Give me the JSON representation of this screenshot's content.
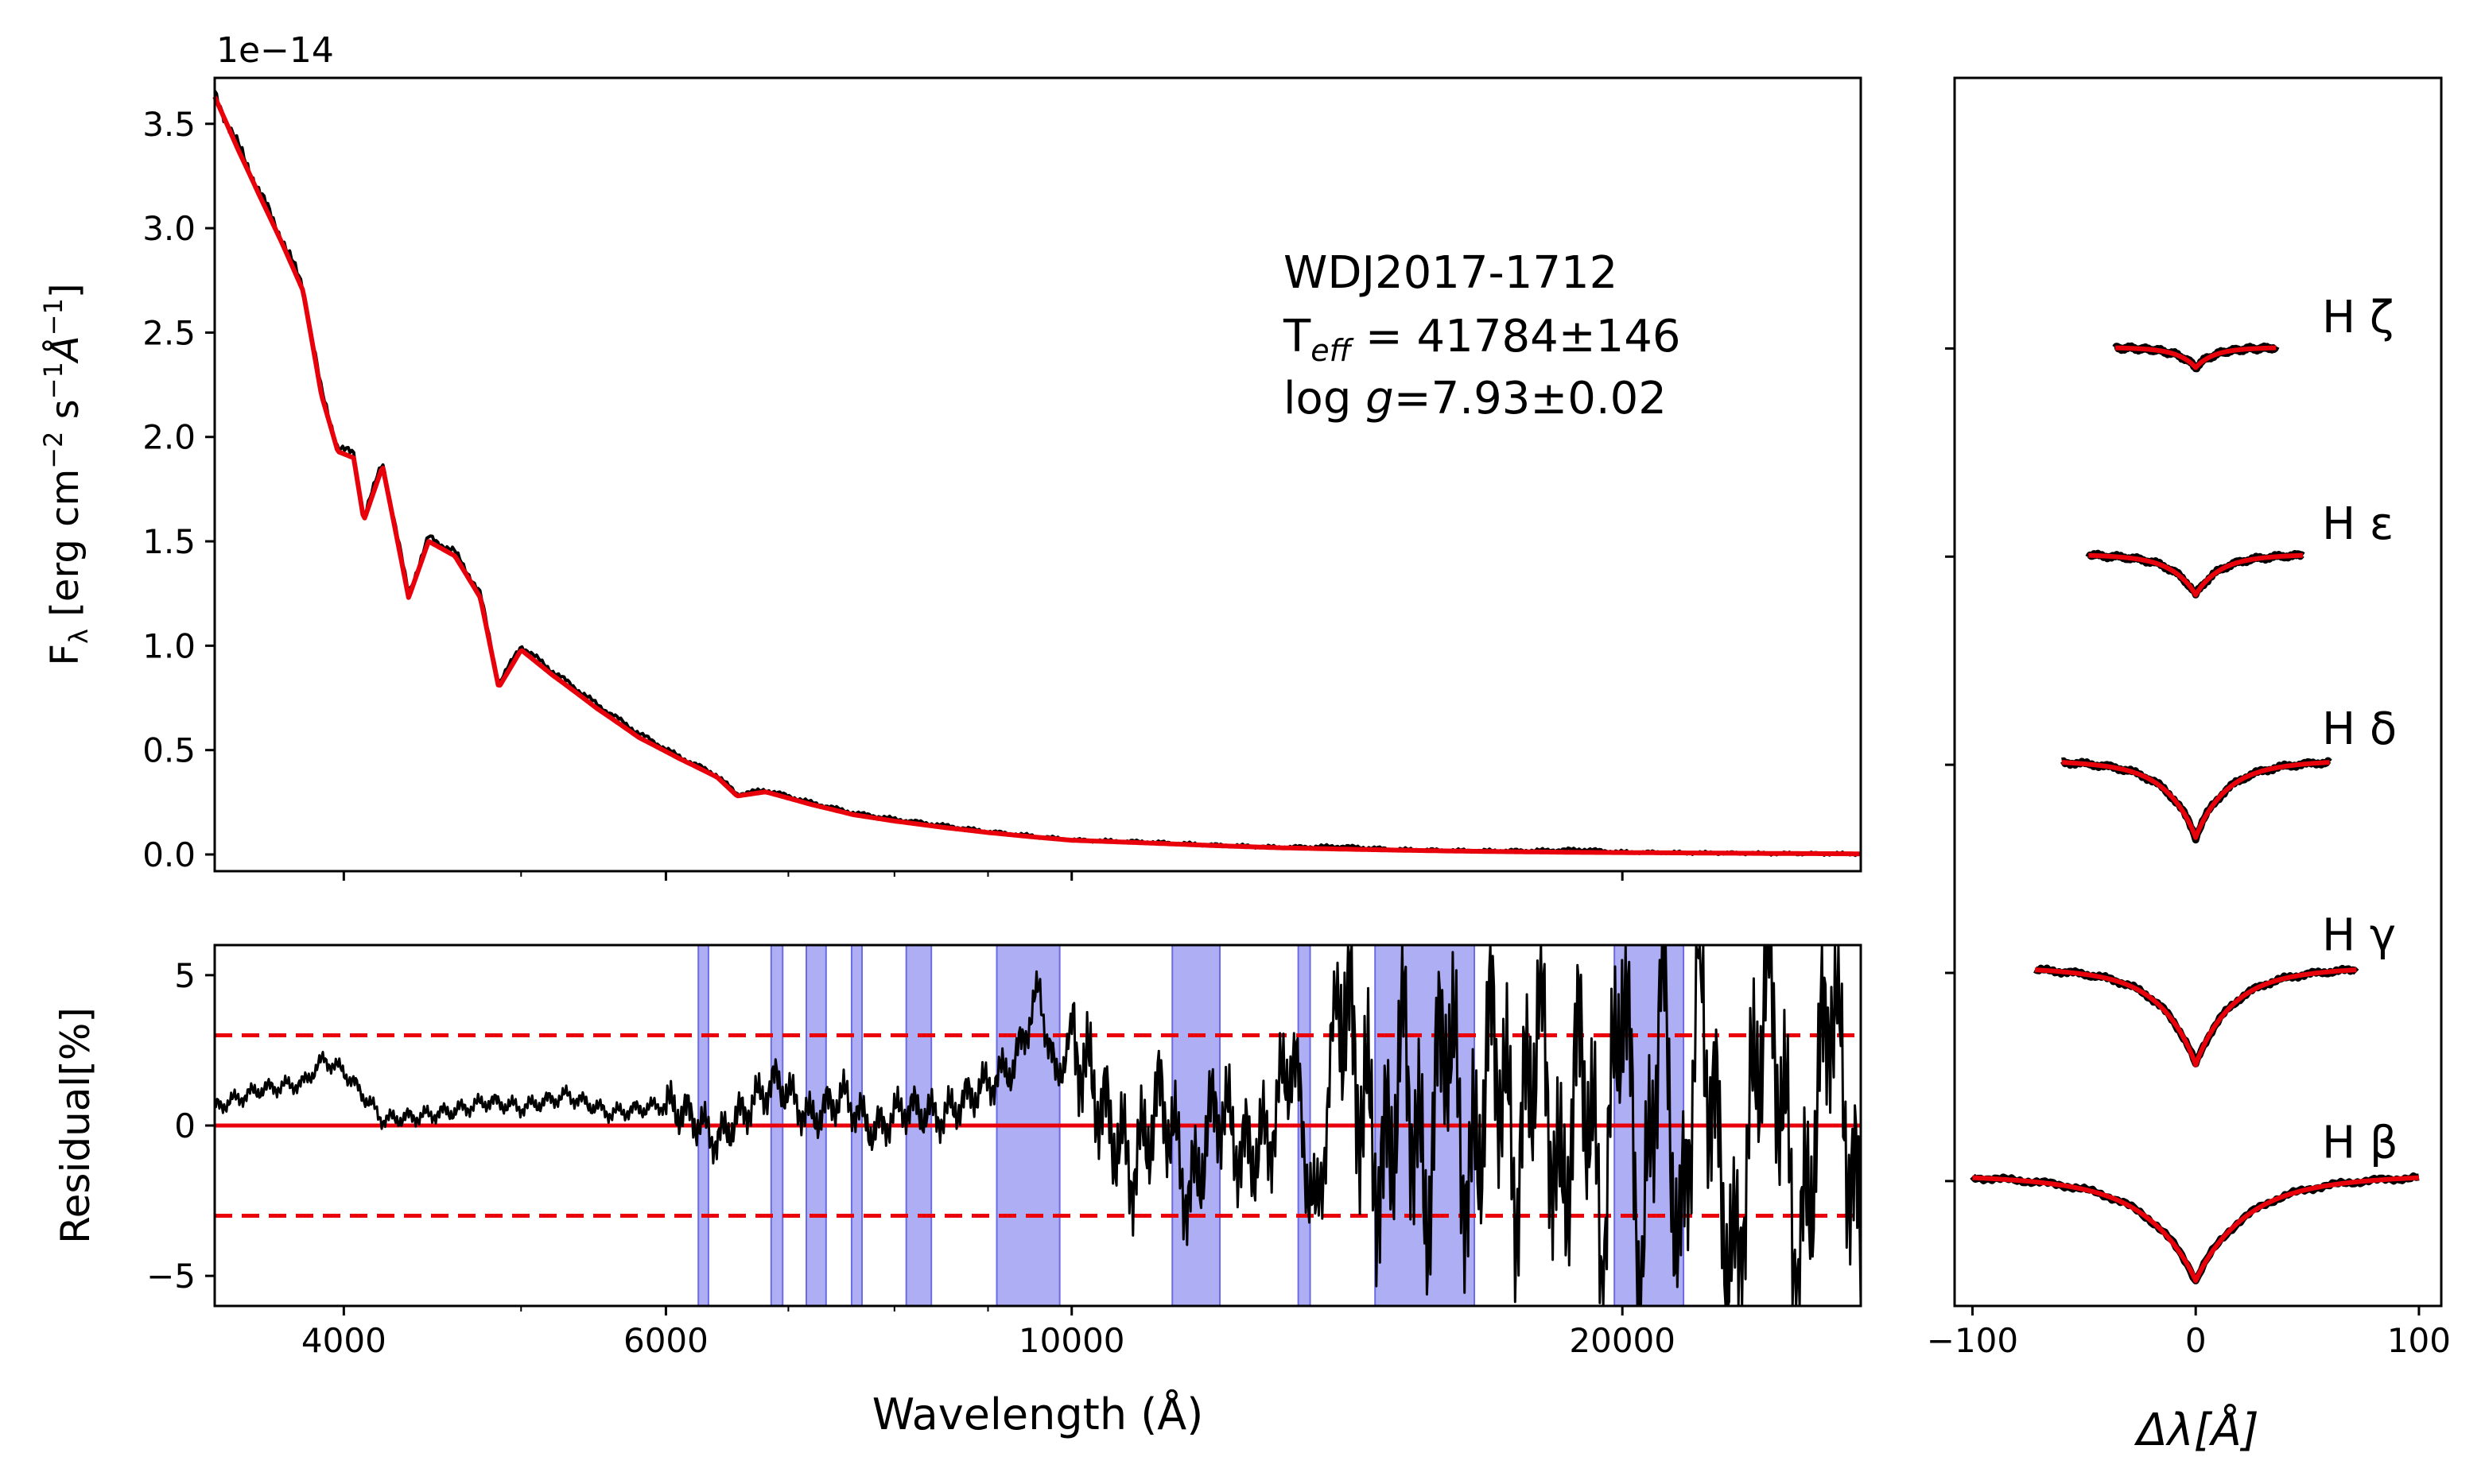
{
  "chart_data": [
    {
      "type": "line",
      "panel": "spectrum",
      "scale_label": "1e−14",
      "ylabel": "Fλ [erg cm⁻² s⁻¹Å⁻¹]",
      "xscale": "log",
      "xlim": [
        3400,
        27000
      ],
      "ylim": [
        -0.08,
        3.72
      ],
      "yticks": [
        0.0,
        0.5,
        1.0,
        1.5,
        2.0,
        2.5,
        3.0,
        3.5
      ],
      "ytick_labels": [
        "0.0",
        "0.5",
        "1.0",
        "1.5",
        "2.0",
        "2.5",
        "3.0",
        "3.5"
      ],
      "annotation": {
        "name": "WDJ2017-1712",
        "teff": "Tₑₒₒ = 41784±146",
        "logg": "log g=7.93±0.02"
      },
      "series": [
        {
          "role": "observed",
          "color": "#000000",
          "x": [
            3400,
            3500,
            3600,
            3700,
            3800,
            3889,
            3970,
            4050,
            4102,
            4200,
            4340,
            4450,
            4600,
            4750,
            4861,
            5000,
            5200,
            5500,
            5800,
            6100,
            6400,
            6563,
            6800,
            7200,
            7600,
            8000,
            8500,
            9000,
            9500,
            10000,
            11000,
            12000,
            13000,
            14000,
            15000,
            16000,
            17000,
            18000,
            19000,
            20000,
            22000,
            24000,
            27000
          ],
          "y": [
            3.64,
            3.4,
            3.17,
            2.95,
            2.72,
            2.22,
            1.95,
            1.92,
            1.62,
            1.88,
            1.25,
            1.52,
            1.45,
            1.25,
            0.82,
            1.0,
            0.88,
            0.72,
            0.58,
            0.47,
            0.38,
            0.29,
            0.31,
            0.25,
            0.2,
            0.17,
            0.14,
            0.11,
            0.09,
            0.07,
            0.06,
            0.045,
            0.035,
            0.04,
            0.025,
            0.02,
            0.018,
            0.02,
            0.025,
            0.012,
            0.008,
            0.005,
            0.003
          ]
        },
        {
          "role": "model",
          "color": "#e8000b",
          "x": [
            3400,
            3500,
            3600,
            3700,
            3800,
            3889,
            3970,
            4050,
            4102,
            4200,
            4340,
            4450,
            4600,
            4750,
            4861,
            5000,
            5200,
            5500,
            5800,
            6100,
            6400,
            6563,
            6800,
            7200,
            7600,
            8000,
            8500,
            9000,
            9500,
            10000,
            11000,
            12000,
            13000,
            14000,
            15000,
            16000,
            17000,
            18000,
            19000,
            20000,
            22000,
            24000,
            27000
          ],
          "y": [
            3.63,
            3.38,
            3.15,
            2.93,
            2.7,
            2.2,
            1.93,
            1.9,
            1.6,
            1.86,
            1.23,
            1.5,
            1.43,
            1.23,
            0.8,
            0.98,
            0.86,
            0.7,
            0.56,
            0.46,
            0.37,
            0.28,
            0.3,
            0.24,
            0.19,
            0.16,
            0.13,
            0.105,
            0.085,
            0.068,
            0.055,
            0.042,
            0.032,
            0.026,
            0.021,
            0.017,
            0.014,
            0.012,
            0.01,
            0.009,
            0.007,
            0.005,
            0.003
          ]
        }
      ]
    },
    {
      "type": "line",
      "panel": "residual",
      "xlabel": "Wavelength (Å)",
      "ylabel": "Residual[%]",
      "xscale": "log",
      "xlim": [
        3400,
        27000
      ],
      "ylim": [
        -6,
        6
      ],
      "xticks": [
        4000,
        6000,
        10000,
        20000
      ],
      "xtick_labels": [
        "4000",
        "6000",
        "10000",
        "20000"
      ],
      "yticks": [
        -5,
        0,
        5
      ],
      "ytick_labels": [
        "−5",
        "0",
        "5"
      ],
      "reference_lines": [
        {
          "y": 0,
          "style": "solid",
          "color": "#e8000b"
        },
        {
          "y": 3,
          "style": "dashed",
          "color": "#e8000b"
        },
        {
          "y": -3,
          "style": "dashed",
          "color": "#e8000b"
        }
      ],
      "masked_regions": [
        [
          6250,
          6330
        ],
        [
          6850,
          6950
        ],
        [
          7160,
          7340
        ],
        [
          7580,
          7680
        ],
        [
          8120,
          8380
        ],
        [
          9100,
          9850
        ],
        [
          11350,
          12050
        ],
        [
          13300,
          13500
        ],
        [
          14650,
          16600
        ],
        [
          19800,
          21600
        ]
      ],
      "mask_color": "#8c8cf0",
      "series": [
        {
          "role": "residual",
          "color": "#000000",
          "x": [
            3400,
            3600,
            3800,
            3900,
            4000,
            4100,
            4200,
            4400,
            4600,
            4800,
            5000,
            5300,
            5600,
            6000,
            6200,
            6400,
            6600,
            6900,
            7200,
            7500,
            7800,
            8100,
            8500,
            8900,
            9300,
            9600,
            9800,
            10000,
            10400,
            10800,
            11200,
            11600,
            12000,
            12400,
            12800,
            13200,
            13600,
            14000,
            14400,
            14800,
            15200,
            15600,
            16000,
            16500,
            17000,
            17500,
            18000,
            18500,
            19000,
            19500,
            20000,
            20500,
            21000,
            21500,
            22000,
            23000,
            24000,
            25000,
            26000,
            27000
          ],
          "y": [
            0.6,
            1.2,
            1.4,
            2.2,
            1.8,
            1.0,
            0.2,
            0.3,
            0.5,
            0.8,
            0.6,
            1.0,
            0.4,
            0.7,
            0.3,
            -0.5,
            0.4,
            1.5,
            0.2,
            1.0,
            -0.2,
            0.6,
            0.3,
            1.2,
            2.0,
            4.5,
            1.5,
            3.0,
            0.5,
            -1.5,
            1.0,
            -2.5,
            0.8,
            -1.0,
            -0.5,
            2.5,
            -3.5,
            5.0,
            1.0,
            -2.0,
            3.0,
            -3.0,
            4.0,
            -2.5,
            3.5,
            -2.0,
            4.0,
            -3.0,
            3.0,
            -4.0,
            5.5,
            -5.5,
            5.5,
            -5.0,
            5.0,
            -5.5,
            5.5,
            -5.0,
            5.0,
            -4.5
          ]
        }
      ]
    },
    {
      "type": "line",
      "panel": "balmer_lines",
      "xlabel": "Δλ[Å]",
      "xlim": [
        -108,
        110
      ],
      "xticks": [
        -100,
        0,
        100
      ],
      "xtick_labels": [
        "−100",
        "0",
        "100"
      ],
      "ylim": [
        -0.6,
        5.3
      ],
      "ytick_positions": [
        0,
        1,
        2,
        3,
        4
      ],
      "lines": [
        {
          "label": "H β",
          "offset": 0,
          "width": 100,
          "depth": 0.52
        },
        {
          "label": "H γ",
          "offset": 1,
          "width": 72,
          "depth": 0.48
        },
        {
          "label": "H δ",
          "offset": 2,
          "width": 60,
          "depth": 0.38
        },
        {
          "label": "H ε",
          "offset": 3,
          "width": 48,
          "depth": 0.2
        },
        {
          "label": "H ζ",
          "offset": 4,
          "width": 36,
          "depth": 0.1
        }
      ],
      "observed_color": "#000000",
      "model_color": "#e8000b"
    }
  ]
}
